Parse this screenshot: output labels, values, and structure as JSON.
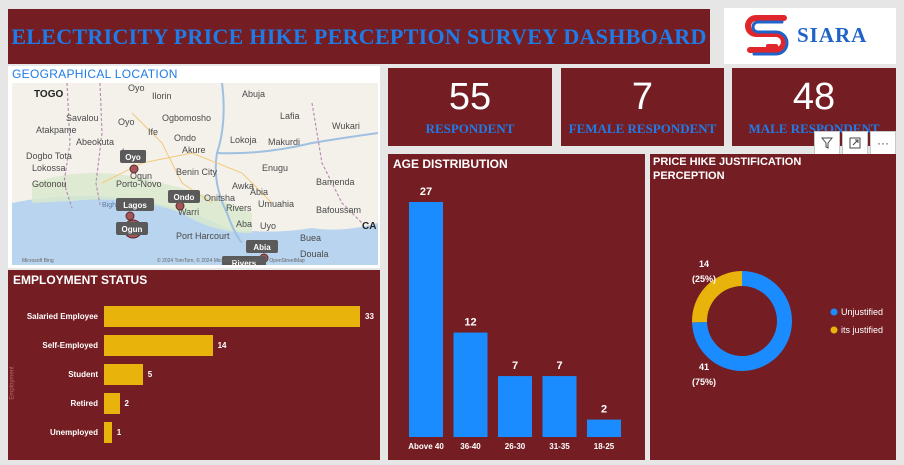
{
  "header": {
    "title": "ELECTRICITY PRICE HIKE PERCEPTION SURVEY DASHBOARD",
    "logo_text": "SIARA"
  },
  "map": {
    "title": "GEOGRAPHICAL LOCATION",
    "places": [
      "TOGO",
      "Oyo",
      "Ilorin",
      "Savalou",
      "Oyo",
      "Ogbomosho",
      "Abuja",
      "Lafia",
      "Atakpame",
      "Ife",
      "Wukari",
      "Abeokuta",
      "Ondo",
      "Lokoja",
      "Makurdi",
      "Dogbo Tota",
      "Lagos",
      "Akure",
      "Lokossa",
      "Benin City",
      "Enugu",
      "Gotonou",
      "Ogun",
      "Porto-Novo",
      "Awka",
      "Onitsha",
      "Abia",
      "Bamenda",
      "Bight of Benin",
      "Warri",
      "Rivers",
      "Umuahia",
      "Bafoussam",
      "Aba",
      "Uyo",
      "Port Harcourt",
      "Buea",
      "Douala",
      "CA"
    ],
    "bubble_labels": [
      "Oyo",
      "Ondo",
      "Lagos",
      "Ogun",
      "Abia",
      "Rivers"
    ],
    "copyright": "© 2024 TomTom, © 2024 Microsoft Corporation, © OpenStreetMap",
    "attribution": "Microsoft Bing"
  },
  "kpis": [
    {
      "value": "55",
      "label": "RESPONDENT"
    },
    {
      "value": "7",
      "label": "FEMALE RESPONDENT"
    },
    {
      "value": "48",
      "label": "MALE RESPONDENT"
    }
  ],
  "toolbar": {
    "icons": [
      "filter-icon",
      "focus-icon",
      "more-icon"
    ]
  },
  "chart_data": [
    {
      "type": "bar",
      "title": "EMPLOYMENT STATUS",
      "orientation": "horizontal",
      "categories": [
        "Salaried Employee",
        "Self-Employed",
        "Student",
        "Retired",
        "Unemployed"
      ],
      "values": [
        33,
        14,
        5,
        2,
        1
      ],
      "color": "#e8b30a",
      "ylabel": "Employment"
    },
    {
      "type": "bar",
      "title": "AGE DISTRIBUTION",
      "orientation": "vertical",
      "categories": [
        "Above 40",
        "36-40",
        "26-30",
        "31-35",
        "18-25"
      ],
      "values": [
        27,
        12,
        7,
        7,
        2
      ],
      "color": "#1a8cff"
    },
    {
      "type": "pie",
      "title": "PRICE HIKE JUSTIFICATION PERCEPTION",
      "donut": true,
      "series": [
        {
          "name": "Unjustified",
          "value": 41,
          "percent_label": "(75%)",
          "color": "#1a8cff"
        },
        {
          "name": "its justified",
          "value": 14,
          "percent_label": "(25%)",
          "color": "#e8b30a"
        }
      ],
      "legend_position": "right"
    }
  ]
}
